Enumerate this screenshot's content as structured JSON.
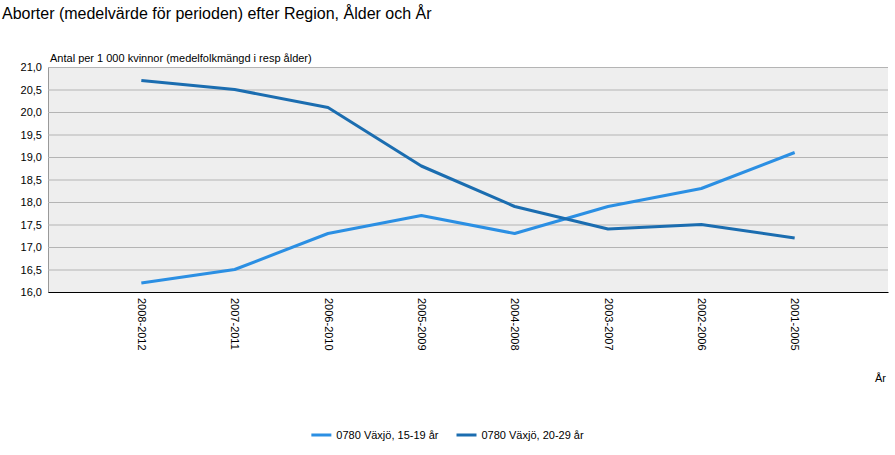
{
  "chart_data": {
    "type": "line",
    "title": "Aborter (medelvärde för perioden) efter Region, Ålder och År",
    "y_label": "Antal per 1 000 kvinnor (medelfolkmängd i resp ålder)",
    "x_label": "År",
    "categories": [
      "2008-2012",
      "2007-2011",
      "2006-2010",
      "2005-2009",
      "2004-2008",
      "2003-2007",
      "2002-2006",
      "2001-2005"
    ],
    "series": [
      {
        "name": "0780 Växjö, 15-19 år",
        "color": "#2b8fe3",
        "values": [
          16.2,
          16.5,
          17.3,
          17.7,
          17.3,
          17.9,
          18.3,
          19.1
        ]
      },
      {
        "name": "0780 Växjö, 20-29 år",
        "color": "#1b6db0",
        "values": [
          20.7,
          20.5,
          20.1,
          18.8,
          17.9,
          17.4,
          17.5,
          17.2
        ]
      }
    ],
    "ylim": [
      16,
      21
    ],
    "yticks": [
      {
        "value": 16,
        "label": "16,0"
      },
      {
        "value": 16.5,
        "label": "16,5"
      },
      {
        "value": 17,
        "label": "17,0"
      },
      {
        "value": 17.5,
        "label": "17,5"
      },
      {
        "value": 18,
        "label": "18,0"
      },
      {
        "value": 18.5,
        "label": "18,5"
      },
      {
        "value": 19,
        "label": "19,0"
      },
      {
        "value": 19.5,
        "label": "19,5"
      },
      {
        "value": 20,
        "label": "20,0"
      },
      {
        "value": 20.5,
        "label": "20,5"
      },
      {
        "value": 21,
        "label": "21,0"
      }
    ],
    "grid": true,
    "legend": "bottom"
  }
}
